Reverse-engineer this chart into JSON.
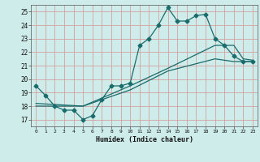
{
  "xlabel": "Humidex (Indice chaleur)",
  "bg_color": "#ceecea",
  "line_color": "#1a6b6b",
  "grid_color": "#d4a0a0",
  "xlim": [
    -0.5,
    23.5
  ],
  "ylim": [
    16.5,
    25.5
  ],
  "xticks": [
    0,
    1,
    2,
    3,
    4,
    5,
    6,
    7,
    8,
    9,
    10,
    11,
    12,
    13,
    14,
    15,
    16,
    17,
    18,
    19,
    20,
    21,
    22,
    23
  ],
  "yticks": [
    17,
    18,
    19,
    20,
    21,
    22,
    23,
    24,
    25
  ],
  "line1_x": [
    0,
    1,
    2,
    3,
    4,
    5,
    6,
    7,
    8,
    9,
    10,
    11,
    12,
    13,
    14,
    15,
    16,
    17,
    18,
    19,
    20,
    21,
    22,
    23
  ],
  "line1_y": [
    19.5,
    18.8,
    18.0,
    17.7,
    17.7,
    17.0,
    17.3,
    18.5,
    19.5,
    19.5,
    19.7,
    22.5,
    23.0,
    24.0,
    25.3,
    24.3,
    24.3,
    24.7,
    24.8,
    23.0,
    22.5,
    21.7,
    21.3,
    21.3
  ],
  "line2_x": [
    0,
    5,
    10,
    14,
    19,
    21,
    22,
    23
  ],
  "line2_y": [
    18.2,
    18.0,
    19.5,
    20.8,
    22.5,
    22.5,
    21.5,
    21.4
  ],
  "line3_x": [
    0,
    5,
    10,
    14,
    19,
    21,
    22,
    23
  ],
  "line3_y": [
    18.0,
    18.0,
    19.2,
    20.6,
    21.5,
    21.3,
    21.3,
    21.3
  ]
}
